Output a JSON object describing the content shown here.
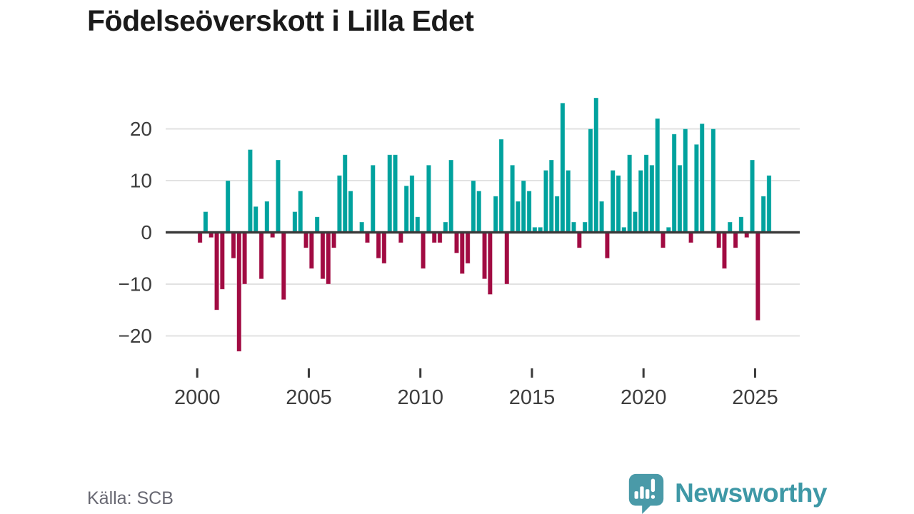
{
  "title": "Födelseöverskott i Lilla Edet",
  "source": {
    "label": "Källa: SCB"
  },
  "brand": {
    "name": "Newsworthy",
    "color": "#3e98a6",
    "icon": "speech-bubble-bar-chart-icon"
  },
  "chart_data": {
    "type": "bar",
    "title": "Födelseöverskott i Lilla Edet",
    "frequency": "quarterly",
    "start_period": "2000-Q1",
    "end_period": "2025-Q3",
    "x_tick_labels": [
      "2000",
      "2005",
      "2010",
      "2015",
      "2020",
      "2025"
    ],
    "x_tick_years": [
      2000,
      2005,
      2010,
      2015,
      2020,
      2025
    ],
    "y_tick_labels": [
      "20",
      "10",
      "0",
      "−10",
      "−20"
    ],
    "y_ticks": [
      20,
      10,
      0,
      -10,
      -20
    ],
    "ylim": [
      -25,
      28
    ],
    "grid": "horizontal",
    "legend": "none",
    "positive_color": "#00a29e",
    "negative_color": "#a10b42",
    "values": [
      -2,
      4,
      -1,
      -15,
      -11,
      10,
      -5,
      -23,
      -10,
      16,
      5,
      -9,
      6,
      -1,
      14,
      -13,
      0,
      4,
      8,
      -3,
      -7,
      3,
      -9,
      -10,
      -3,
      11,
      15,
      8,
      0,
      2,
      -2,
      13,
      -5,
      -6,
      15,
      15,
      -2,
      9,
      11,
      3,
      -7,
      13,
      -2,
      -2,
      2,
      14,
      -4,
      -8,
      -6,
      10,
      8,
      -9,
      -12,
      7,
      18,
      -10,
      13,
      6,
      10,
      8,
      1,
      1,
      12,
      14,
      7,
      25,
      12,
      2,
      -3,
      2,
      20,
      26,
      6,
      -5,
      12,
      11,
      1,
      15,
      4,
      12,
      15,
      13,
      22,
      -3,
      1,
      19,
      13,
      20,
      -2,
      17,
      21,
      0,
      20,
      -3,
      -7,
      2,
      -3,
      3,
      -1,
      14,
      -17,
      7,
      11
    ]
  }
}
